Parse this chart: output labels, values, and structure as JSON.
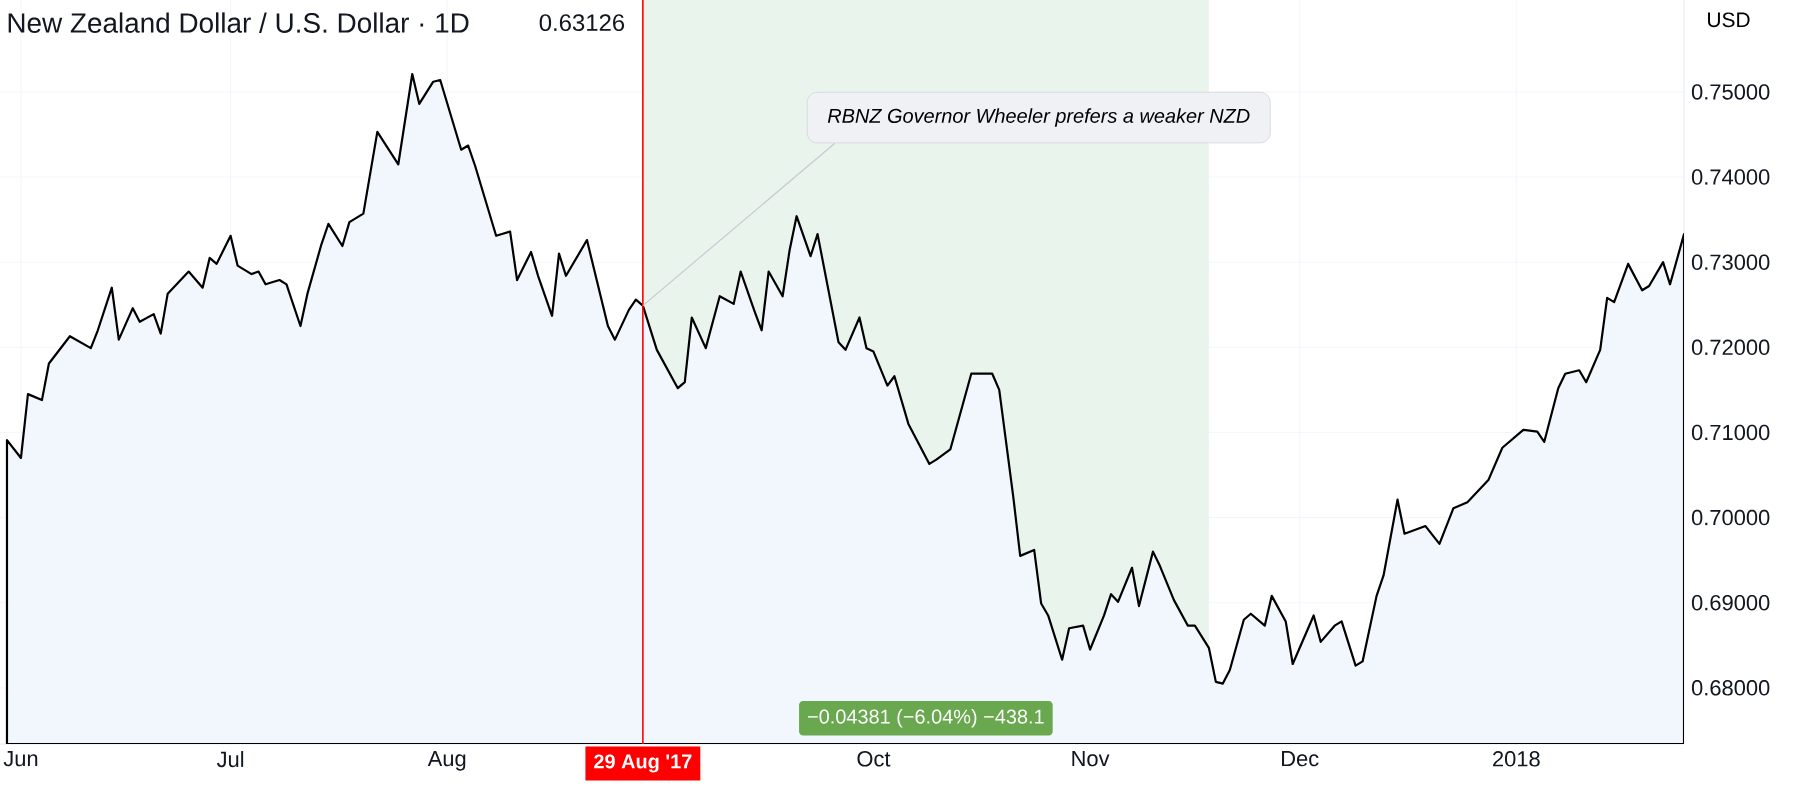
{
  "chart_data": {
    "type": "area",
    "title": "New Zealand Dollar / U.S. Dollar · 1D",
    "subtitle": "0.63126",
    "ylabel": "USD",
    "x": [
      "2017-05-30",
      "2017-06-01",
      "2017-06-02",
      "2017-06-04",
      "2017-06-05",
      "2017-06-08",
      "2017-06-11",
      "2017-06-12",
      "2017-06-14",
      "2017-06-15",
      "2017-06-17",
      "2017-06-18",
      "2017-06-20",
      "2017-06-21",
      "2017-06-22",
      "2017-06-25",
      "2017-06-27",
      "2017-06-28",
      "2017-06-29",
      "2017-07-01",
      "2017-07-02",
      "2017-07-04",
      "2017-07-05",
      "2017-07-06",
      "2017-07-08",
      "2017-07-09",
      "2017-07-11",
      "2017-07-12",
      "2017-07-14",
      "2017-07-15",
      "2017-07-17",
      "2017-07-18",
      "2017-07-20",
      "2017-07-22",
      "2017-07-25",
      "2017-07-27",
      "2017-07-28",
      "2017-07-30",
      "2017-07-31",
      "2017-08-03",
      "2017-08-04",
      "2017-08-05",
      "2017-08-08",
      "2017-08-10",
      "2017-08-11",
      "2017-08-13",
      "2017-08-14",
      "2017-08-16",
      "2017-08-17",
      "2017-08-18",
      "2017-08-21",
      "2017-08-24",
      "2017-08-25",
      "2017-08-27",
      "2017-08-28",
      "2017-08-29",
      "2017-08-31",
      "2017-09-03",
      "2017-09-04",
      "2017-09-05",
      "2017-09-07",
      "2017-09-09",
      "2017-09-11",
      "2017-09-12",
      "2017-09-14",
      "2017-09-15",
      "2017-09-16",
      "2017-09-18",
      "2017-09-19",
      "2017-09-20",
      "2017-09-22",
      "2017-09-23",
      "2017-09-26",
      "2017-09-27",
      "2017-09-29",
      "2017-09-30",
      "2017-10-01",
      "2017-10-03",
      "2017-10-04",
      "2017-10-06",
      "2017-10-09",
      "2017-10-10",
      "2017-10-12",
      "2017-10-15",
      "2017-10-18",
      "2017-10-19",
      "2017-10-21",
      "2017-10-22",
      "2017-10-24",
      "2017-10-25",
      "2017-10-26",
      "2017-10-28",
      "2017-10-29",
      "2017-10-31",
      "2017-11-01",
      "2017-11-03",
      "2017-11-04",
      "2017-11-05",
      "2017-11-07",
      "2017-11-08",
      "2017-11-10",
      "2017-11-11",
      "2017-11-13",
      "2017-11-15",
      "2017-11-16",
      "2017-11-18",
      "2017-11-19",
      "2017-11-20",
      "2017-11-21",
      "2017-11-23",
      "2017-11-24",
      "2017-11-26",
      "2017-11-27",
      "2017-11-29",
      "2017-11-30",
      "2017-12-03",
      "2017-12-04",
      "2017-12-06",
      "2017-12-07",
      "2017-12-09",
      "2017-12-10",
      "2017-12-12",
      "2017-12-13",
      "2017-12-15",
      "2017-12-16",
      "2017-12-19",
      "2017-12-21",
      "2017-12-23",
      "2017-12-25",
      "2017-12-28",
      "2017-12-30",
      "2018-01-02",
      "2018-01-04",
      "2018-01-05",
      "2018-01-07",
      "2018-01-08",
      "2018-01-10",
      "2018-01-11",
      "2018-01-13",
      "2018-01-14",
      "2018-01-15",
      "2018-01-17",
      "2018-01-19",
      "2018-01-20",
      "2018-01-22",
      "2018-01-23",
      "2018-01-25"
    ],
    "series": [
      {
        "color": "#f2f7fe",
        "values": [
          0.7091,
          0.707,
          0.7145,
          0.7138,
          0.7181,
          0.7213,
          0.7199,
          0.722,
          0.727,
          0.7209,
          0.7246,
          0.723,
          0.7239,
          0.7216,
          0.7263,
          0.7289,
          0.727,
          0.7305,
          0.7298,
          0.7331,
          0.7296,
          0.7286,
          0.7289,
          0.7274,
          0.7279,
          0.7274,
          0.7225,
          0.7263,
          0.7321,
          0.7345,
          0.7319,
          0.7347,
          0.7357,
          0.7453,
          0.7415,
          0.7521,
          0.7486,
          0.7512,
          0.7514,
          0.7432,
          0.7437,
          0.7413,
          0.7331,
          0.7336,
          0.7279,
          0.7312,
          0.7284,
          0.7237,
          0.731,
          0.7284,
          0.7326,
          0.7225,
          0.7209,
          0.7244,
          0.7256,
          0.7249,
          0.7197,
          0.7152,
          0.7159,
          0.7235,
          0.7199,
          0.726,
          0.7251,
          0.7289,
          0.7242,
          0.722,
          0.7289,
          0.726,
          0.7314,
          0.7354,
          0.7307,
          0.7333,
          0.7206,
          0.7197,
          0.7235,
          0.7199,
          0.7195,
          0.7155,
          0.7166,
          0.711,
          0.7063,
          0.7068,
          0.708,
          0.7169,
          0.7169,
          0.715,
          0.7025,
          0.6955,
          0.6962,
          0.6899,
          0.6885,
          0.6833,
          0.687,
          0.6873,
          0.6845,
          0.6885,
          0.691,
          0.6901,
          0.6941,
          0.6896,
          0.696,
          0.6943,
          0.6903,
          0.6873,
          0.6873,
          0.6847,
          0.6807,
          0.6805,
          0.6821,
          0.688,
          0.6887,
          0.6873,
          0.6908,
          0.6878,
          0.6828,
          0.6885,
          0.6854,
          0.6873,
          0.6878,
          0.6826,
          0.6831,
          0.6908,
          0.6932,
          0.7021,
          0.6981,
          0.699,
          0.6969,
          0.7011,
          0.7018,
          0.7044,
          0.7082,
          0.7103,
          0.7101,
          0.7089,
          0.7152,
          0.7169,
          0.7173,
          0.7159,
          0.7197,
          0.7258,
          0.7253,
          0.7298,
          0.7267,
          0.7272,
          0.73,
          0.7274,
          0.7333
        ]
      }
    ],
    "xlim": [
      "2017-05-29",
      "2018-01-25"
    ],
    "xticks": [
      {
        "value": "2017-06-01",
        "label": "Jun"
      },
      {
        "value": "2017-07-01",
        "label": "Jul"
      },
      {
        "value": "2017-08-01",
        "label": "Aug"
      },
      {
        "value": "2017-09-01",
        "label": null
      },
      {
        "value": "2017-10-01",
        "label": "Oct"
      },
      {
        "value": "2017-11-01",
        "label": "Nov"
      },
      {
        "value": "2017-12-01",
        "label": "Dec"
      },
      {
        "value": "2018-01-01",
        "label": "2018"
      }
    ],
    "ylim": [
      0.6734,
      0.7608
    ],
    "yticks": [
      {
        "value": 0.68,
        "label": "0.68000"
      },
      {
        "value": 0.69,
        "label": "0.69000"
      },
      {
        "value": 0.7,
        "label": "0.70000"
      },
      {
        "value": 0.71,
        "label": "0.71000"
      },
      {
        "value": 0.72,
        "label": "0.72000"
      },
      {
        "value": 0.73,
        "label": "0.73000"
      },
      {
        "value": 0.74,
        "label": "0.74000"
      },
      {
        "value": 0.75,
        "label": "0.75000"
      }
    ],
    "grid": true,
    "ref_lines": [
      {
        "axis": "x",
        "value": "2017-08-29",
        "label": "29 Aug '17",
        "color": "#ff0000"
      }
    ],
    "bands": [
      {
        "axis": "x",
        "from": "2017-08-29",
        "to": "2017-11-18",
        "label": "−0.04381 (−6.04%) −438.1",
        "color": "#e9f4ec"
      }
    ],
    "annotations": [
      {
        "text": "RBNZ Governor Wheeler prefers a weaker NZD",
        "x": "2017-08-29",
        "y": 0.7249
      }
    ]
  }
}
